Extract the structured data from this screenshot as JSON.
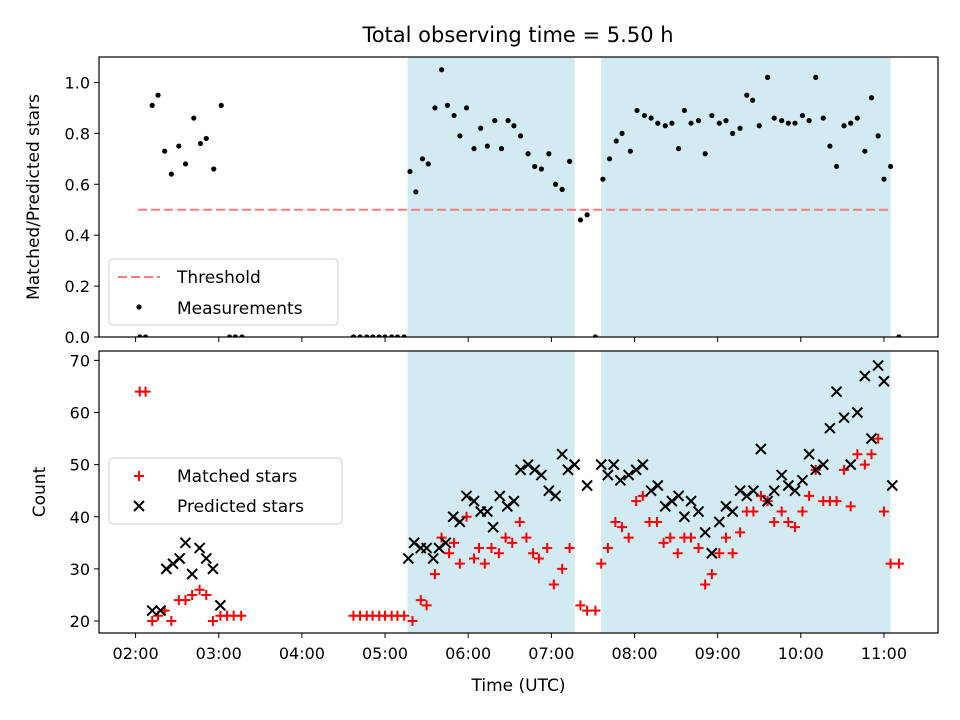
{
  "chart_data": [
    {
      "type": "scatter",
      "panel": "top",
      "title": "Total observing time = 5.50 h",
      "ylabel": "Matched/Predicted stars",
      "xlim_hours": [
        1.56,
        11.65
      ],
      "ylim": [
        0.0,
        1.1
      ],
      "yticks": [
        0.0,
        0.2,
        0.4,
        0.6,
        0.8,
        1.0
      ],
      "ytick_labels": [
        "0.0",
        "0.2",
        "0.4",
        "0.6",
        "0.8",
        "1.0"
      ],
      "legend_position": "lower-left",
      "colors": {
        "threshold": "#f08080",
        "measurements": "#000000",
        "shade": "#add8e6"
      },
      "observing_windows": [
        [
          5.27,
          7.28
        ],
        [
          7.6,
          11.08
        ]
      ],
      "threshold": {
        "name": "Threshold",
        "value": 0.5,
        "x_range": [
          2.03,
          11.08
        ]
      },
      "measurements": {
        "name": "Measurements",
        "points": [
          [
            2.05,
            0
          ],
          [
            2.12,
            0
          ],
          [
            2.2,
            0.91
          ],
          [
            2.27,
            0.95
          ],
          [
            2.35,
            0.73
          ],
          [
            2.43,
            0.64
          ],
          [
            2.52,
            0.75
          ],
          [
            2.6,
            0.68
          ],
          [
            2.7,
            0.86
          ],
          [
            2.78,
            0.76
          ],
          [
            2.85,
            0.78
          ],
          [
            2.94,
            0.66
          ],
          [
            3.03,
            0.91
          ],
          [
            3.13,
            0
          ],
          [
            3.2,
            0
          ],
          [
            3.28,
            0
          ],
          [
            4.62,
            0
          ],
          [
            4.7,
            0
          ],
          [
            4.78,
            0
          ],
          [
            4.85,
            0
          ],
          [
            4.93,
            0
          ],
          [
            5.0,
            0
          ],
          [
            5.08,
            0
          ],
          [
            5.15,
            0
          ],
          [
            5.23,
            0
          ],
          [
            5.3,
            0.65
          ],
          [
            5.37,
            0.57
          ],
          [
            5.45,
            0.7
          ],
          [
            5.52,
            0.68
          ],
          [
            5.6,
            0.9
          ],
          [
            5.68,
            1.05
          ],
          [
            5.75,
            0.91
          ],
          [
            5.83,
            0.87
          ],
          [
            5.9,
            0.79
          ],
          [
            5.98,
            0.9
          ],
          [
            6.07,
            0.74
          ],
          [
            6.15,
            0.82
          ],
          [
            6.23,
            0.75
          ],
          [
            6.32,
            0.85
          ],
          [
            6.4,
            0.74
          ],
          [
            6.48,
            0.85
          ],
          [
            6.55,
            0.83
          ],
          [
            6.63,
            0.79
          ],
          [
            6.72,
            0.72
          ],
          [
            6.8,
            0.67
          ],
          [
            6.88,
            0.66
          ],
          [
            6.97,
            0.72
          ],
          [
            7.05,
            0.6
          ],
          [
            7.13,
            0.58
          ],
          [
            7.22,
            0.69
          ],
          [
            7.35,
            0.46
          ],
          [
            7.43,
            0.48
          ],
          [
            7.53,
            0
          ],
          [
            7.62,
            0.62
          ],
          [
            7.7,
            0.7
          ],
          [
            7.78,
            0.77
          ],
          [
            7.85,
            0.8
          ],
          [
            7.95,
            0.73
          ],
          [
            8.03,
            0.89
          ],
          [
            8.12,
            0.87
          ],
          [
            8.2,
            0.86
          ],
          [
            8.28,
            0.84
          ],
          [
            8.37,
            0.83
          ],
          [
            8.45,
            0.84
          ],
          [
            8.53,
            0.74
          ],
          [
            8.6,
            0.89
          ],
          [
            8.68,
            0.84
          ],
          [
            8.77,
            0.85
          ],
          [
            8.85,
            0.72
          ],
          [
            8.93,
            0.87
          ],
          [
            9.02,
            0.84
          ],
          [
            9.1,
            0.85
          ],
          [
            9.18,
            0.8
          ],
          [
            9.27,
            0.82
          ],
          [
            9.35,
            0.95
          ],
          [
            9.42,
            0.93
          ],
          [
            9.5,
            0.83
          ],
          [
            9.6,
            1.02
          ],
          [
            9.68,
            0.86
          ],
          [
            9.77,
            0.85
          ],
          [
            9.85,
            0.84
          ],
          [
            9.93,
            0.84
          ],
          [
            10.02,
            0.87
          ],
          [
            10.1,
            0.85
          ],
          [
            10.18,
            1.02
          ],
          [
            10.27,
            0.86
          ],
          [
            10.35,
            0.75
          ],
          [
            10.43,
            0.67
          ],
          [
            10.52,
            0.83
          ],
          [
            10.6,
            0.84
          ],
          [
            10.68,
            0.86
          ],
          [
            10.77,
            0.73
          ],
          [
            10.85,
            0.94
          ],
          [
            10.93,
            0.79
          ],
          [
            11.0,
            0.62
          ],
          [
            11.08,
            0.67
          ],
          [
            11.18,
            0
          ]
        ]
      }
    },
    {
      "type": "scatter",
      "panel": "bottom",
      "xlabel": "Time (UTC)",
      "ylabel": "Count",
      "xlim_hours": [
        1.56,
        11.65
      ],
      "ylim": [
        17.7,
        71.8
      ],
      "xticks_hours": [
        2,
        3,
        4,
        5,
        6,
        7,
        8,
        9,
        10,
        11
      ],
      "xtick_labels": [
        "02:00",
        "03:00",
        "04:00",
        "05:00",
        "06:00",
        "07:00",
        "08:00",
        "09:00",
        "10:00",
        "11:00"
      ],
      "yticks": [
        20,
        30,
        40,
        50,
        60,
        70
      ],
      "ytick_labels": [
        "20",
        "30",
        "40",
        "50",
        "60",
        "70"
      ],
      "legend_position": "center-left",
      "colors": {
        "matched": "#ff0000",
        "predicted": "#000000",
        "shade": "#add8e6"
      },
      "observing_windows": [
        [
          5.27,
          7.28
        ],
        [
          7.6,
          11.08
        ]
      ],
      "series": [
        {
          "name": "Matched stars",
          "marker": "+",
          "points": [
            [
              2.05,
              64
            ],
            [
              2.12,
              64
            ],
            [
              2.2,
              20
            ],
            [
              2.27,
              21
            ],
            [
              2.35,
              22
            ],
            [
              2.43,
              20
            ],
            [
              2.52,
              24
            ],
            [
              2.6,
              24
            ],
            [
              2.68,
              25
            ],
            [
              2.77,
              26
            ],
            [
              2.85,
              25
            ],
            [
              2.93,
              20
            ],
            [
              3.02,
              21
            ],
            [
              3.1,
              21
            ],
            [
              3.18,
              21
            ],
            [
              3.27,
              21
            ],
            [
              4.62,
              21
            ],
            [
              4.7,
              21
            ],
            [
              4.78,
              21
            ],
            [
              4.85,
              21
            ],
            [
              4.93,
              21
            ],
            [
              5.0,
              21
            ],
            [
              5.08,
              21
            ],
            [
              5.15,
              21
            ],
            [
              5.23,
              21
            ],
            [
              5.33,
              20
            ],
            [
              5.43,
              24
            ],
            [
              5.5,
              23
            ],
            [
              5.6,
              29
            ],
            [
              5.68,
              36
            ],
            [
              5.77,
              33
            ],
            [
              5.83,
              35
            ],
            [
              5.9,
              31
            ],
            [
              5.98,
              40
            ],
            [
              6.07,
              32
            ],
            [
              6.13,
              34
            ],
            [
              6.2,
              31
            ],
            [
              6.28,
              34
            ],
            [
              6.37,
              33
            ],
            [
              6.45,
              36
            ],
            [
              6.53,
              35
            ],
            [
              6.62,
              39
            ],
            [
              6.7,
              36
            ],
            [
              6.78,
              33
            ],
            [
              6.85,
              32
            ],
            [
              6.95,
              34
            ],
            [
              7.03,
              27
            ],
            [
              7.13,
              30
            ],
            [
              7.22,
              34
            ],
            [
              7.35,
              23
            ],
            [
              7.43,
              22
            ],
            [
              7.53,
              22
            ],
            [
              7.6,
              31
            ],
            [
              7.68,
              34
            ],
            [
              7.77,
              39
            ],
            [
              7.85,
              38
            ],
            [
              7.93,
              36
            ],
            [
              8.02,
              43
            ],
            [
              8.1,
              44
            ],
            [
              8.18,
              39
            ],
            [
              8.27,
              39
            ],
            [
              8.35,
              35
            ],
            [
              8.43,
              36
            ],
            [
              8.52,
              33
            ],
            [
              8.6,
              36
            ],
            [
              8.68,
              36
            ],
            [
              8.77,
              34
            ],
            [
              8.85,
              27
            ],
            [
              8.93,
              29
            ],
            [
              9.02,
              33
            ],
            [
              9.1,
              36
            ],
            [
              9.18,
              33
            ],
            [
              9.27,
              37
            ],
            [
              9.35,
              41
            ],
            [
              9.43,
              41
            ],
            [
              9.52,
              44
            ],
            [
              9.6,
              43
            ],
            [
              9.68,
              39
            ],
            [
              9.77,
              41
            ],
            [
              9.85,
              39
            ],
            [
              9.93,
              38
            ],
            [
              10.02,
              41
            ],
            [
              10.1,
              44
            ],
            [
              10.18,
              49
            ],
            [
              10.27,
              43
            ],
            [
              10.35,
              43
            ],
            [
              10.43,
              43
            ],
            [
              10.52,
              49
            ],
            [
              10.6,
              42
            ],
            [
              10.68,
              52
            ],
            [
              10.77,
              50
            ],
            [
              10.85,
              52
            ],
            [
              10.93,
              55
            ],
            [
              11.0,
              41
            ],
            [
              11.08,
              31
            ],
            [
              11.18,
              31
            ]
          ]
        },
        {
          "name": "Predicted stars",
          "marker": "x",
          "points": [
            [
              2.2,
              22
            ],
            [
              2.3,
              22
            ],
            [
              2.37,
              30
            ],
            [
              2.45,
              31
            ],
            [
              2.53,
              32
            ],
            [
              2.6,
              35
            ],
            [
              2.68,
              29
            ],
            [
              2.77,
              34
            ],
            [
              2.85,
              32
            ],
            [
              2.93,
              30
            ],
            [
              3.02,
              23
            ],
            [
              5.28,
              32
            ],
            [
              5.35,
              35
            ],
            [
              5.43,
              34
            ],
            [
              5.5,
              34
            ],
            [
              5.58,
              32
            ],
            [
              5.65,
              34
            ],
            [
              5.73,
              35
            ],
            [
              5.82,
              40
            ],
            [
              5.9,
              39
            ],
            [
              5.98,
              44
            ],
            [
              6.07,
              43
            ],
            [
              6.15,
              41
            ],
            [
              6.23,
              41
            ],
            [
              6.3,
              38
            ],
            [
              6.38,
              44
            ],
            [
              6.47,
              42
            ],
            [
              6.55,
              43
            ],
            [
              6.63,
              49
            ],
            [
              6.72,
              50
            ],
            [
              6.8,
              49
            ],
            [
              6.88,
              48
            ],
            [
              6.97,
              45
            ],
            [
              7.05,
              44
            ],
            [
              7.13,
              52
            ],
            [
              7.2,
              49
            ],
            [
              7.28,
              50
            ],
            [
              7.43,
              46
            ],
            [
              7.6,
              50
            ],
            [
              7.68,
              48
            ],
            [
              7.75,
              50
            ],
            [
              7.83,
              47
            ],
            [
              7.93,
              48
            ],
            [
              8.02,
              49
            ],
            [
              8.1,
              50
            ],
            [
              8.2,
              45
            ],
            [
              8.28,
              46
            ],
            [
              8.37,
              42
            ],
            [
              8.45,
              43
            ],
            [
              8.53,
              44
            ],
            [
              8.6,
              40
            ],
            [
              8.68,
              43
            ],
            [
              8.77,
              41
            ],
            [
              8.85,
              37
            ],
            [
              8.93,
              33
            ],
            [
              9.02,
              39
            ],
            [
              9.1,
              42
            ],
            [
              9.18,
              41
            ],
            [
              9.27,
              45
            ],
            [
              9.35,
              44
            ],
            [
              9.43,
              45
            ],
            [
              9.52,
              53
            ],
            [
              9.6,
              43
            ],
            [
              9.68,
              45
            ],
            [
              9.77,
              48
            ],
            [
              9.85,
              46
            ],
            [
              9.93,
              45
            ],
            [
              10.02,
              47
            ],
            [
              10.1,
              52
            ],
            [
              10.18,
              49
            ],
            [
              10.27,
              50
            ],
            [
              10.35,
              57
            ],
            [
              10.43,
              64
            ],
            [
              10.52,
              59
            ],
            [
              10.6,
              50
            ],
            [
              10.68,
              60
            ],
            [
              10.77,
              67
            ],
            [
              10.85,
              55
            ],
            [
              10.93,
              69
            ],
            [
              11.0,
              66
            ],
            [
              11.1,
              46
            ]
          ]
        }
      ]
    }
  ]
}
